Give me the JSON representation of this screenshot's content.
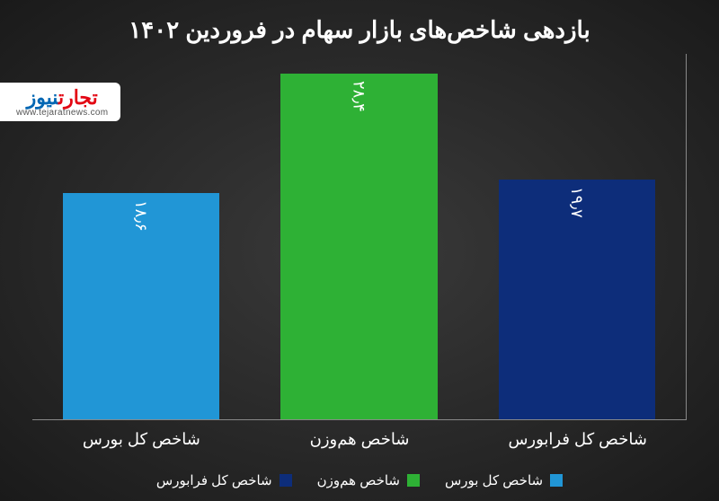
{
  "chart": {
    "type": "bar",
    "title": "بازدهی شاخص‌های بازار سهام در فروردین ۱۴۰۲",
    "title_fontsize": 26,
    "title_color": "#ffffff",
    "background": "radial-gradient #3a3a3a to #1a1a1a",
    "axis_color": "#888888",
    "ylim_max": 30,
    "bar_width_pct": 24,
    "bars": [
      {
        "category": "شاخص کل بورس",
        "value": 18.6,
        "value_label": "۱۸٫۶",
        "color": "#2196d6"
      },
      {
        "category": "شاخص هم‌وزن",
        "value": 28.4,
        "value_label": "۲۸٫۴",
        "color": "#2eb135"
      },
      {
        "category": "شاخص کل فرابورس",
        "value": 19.7,
        "value_label": "۱۹٫۷",
        "color": "#0d2d7a"
      }
    ],
    "value_label_color": "#ffffff",
    "value_label_fontsize": 18,
    "x_label_color": "#ffffff",
    "x_label_fontsize": 18
  },
  "legend": {
    "items": [
      {
        "label": "شاخص کل بورس",
        "color": "#2196d6"
      },
      {
        "label": "شاخص هم‌وزن",
        "color": "#2eb135"
      },
      {
        "label": "شاخص کل فرابورس",
        "color": "#0d2d7a"
      }
    ],
    "fontsize": 15,
    "text_color": "#ffffff",
    "swatch_size": 14
  },
  "logo": {
    "text_red": "تجارت",
    "text_blue": "نیوز",
    "url": "www.tejaratnews.com",
    "bg": "#ffffff",
    "red": "#e30613",
    "blue": "#0066b3"
  }
}
